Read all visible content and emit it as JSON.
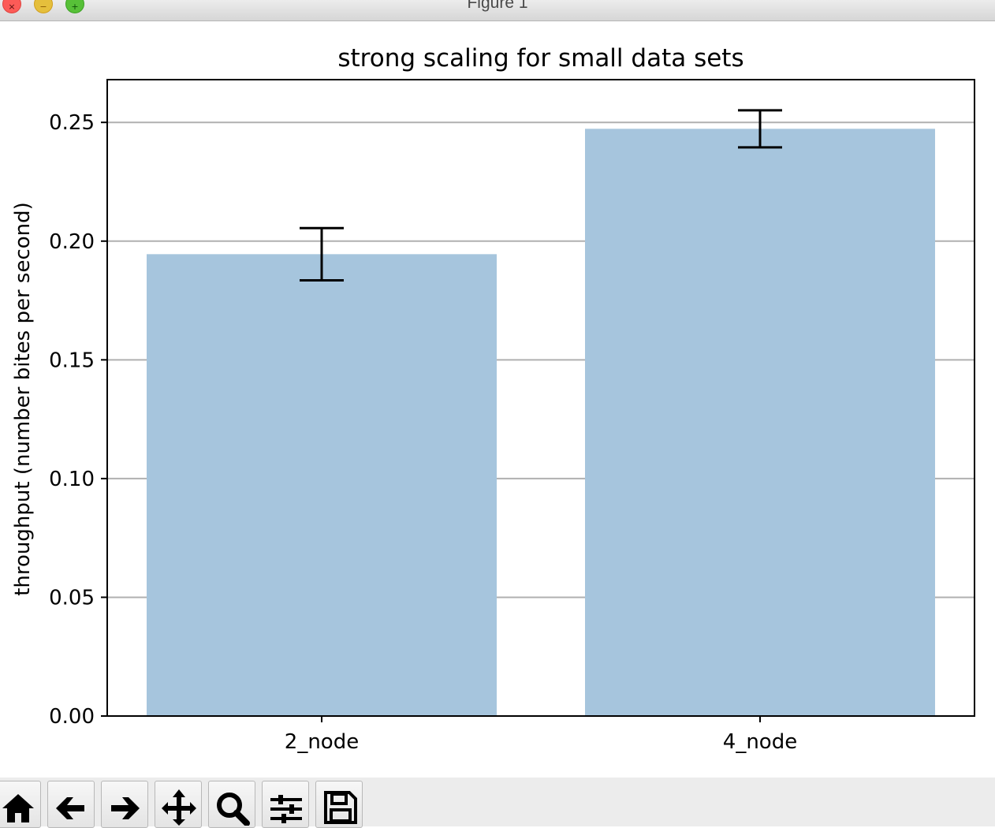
{
  "window": {
    "title": "Figure 1",
    "controls": {
      "close": "×",
      "minimize": "−",
      "maximize": "+"
    }
  },
  "toolbar": {
    "tools": [
      {
        "name": "home",
        "icon": "home-icon"
      },
      {
        "name": "back",
        "icon": "arrow-left-icon"
      },
      {
        "name": "forward",
        "icon": "arrow-right-icon"
      },
      {
        "name": "pan",
        "icon": "move-icon"
      },
      {
        "name": "zoom",
        "icon": "magnifier-icon"
      },
      {
        "name": "configure-subplots",
        "icon": "sliders-icon"
      },
      {
        "name": "save",
        "icon": "floppy-disk-icon"
      }
    ]
  },
  "chart_data": {
    "type": "bar",
    "title": "strong scaling for small data sets",
    "xlabel": "",
    "ylabel": "throughput (number bites per second)",
    "categories": [
      "2_node",
      "4_node"
    ],
    "values": [
      0.1945,
      0.2473
    ],
    "error": [
      0.011,
      0.0078
    ],
    "ylim": [
      0,
      0.268
    ],
    "yticks": [
      "0.00",
      "0.05",
      "0.10",
      "0.15",
      "0.20",
      "0.25"
    ],
    "grid": "horizontal",
    "bar_color": "#a6c5dd",
    "error_color": "#000000",
    "grid_color": "#b0b0b0"
  }
}
